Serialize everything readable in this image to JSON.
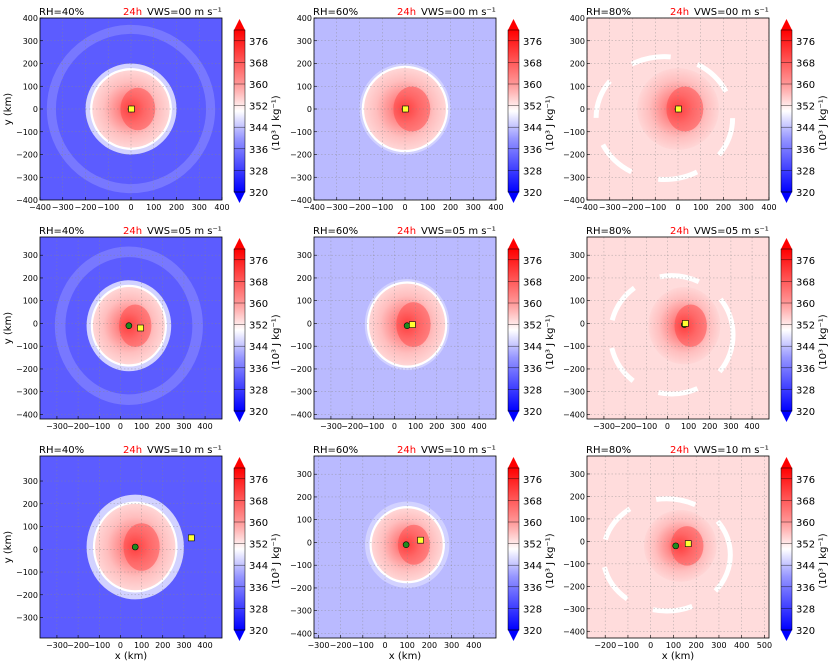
{
  "figure": {
    "time_label": "24h",
    "time_color": "#ff0000",
    "field_colors": {
      "strong_blue": "#5c5cff",
      "light_blue": "#babaff",
      "pale_red": "#ffdcdc",
      "white": "#ffffff",
      "red": "#ff3c3c"
    },
    "marker_colors": {
      "center_green": "#1e8c1e",
      "center_yellow": "#ffff33"
    }
  },
  "colorbar": {
    "label": "(10³ J kg⁻¹)",
    "ticks": [
      "376",
      "368",
      "360",
      "352",
      "344",
      "336",
      "328",
      "320"
    ],
    "vmin": 320,
    "vmax": 380
  },
  "chart_data": [
    {
      "type": "heatmap",
      "row": 1,
      "col": 1,
      "rh_label": "RH=40%",
      "vws_label": "VWS=00 m s⁻¹",
      "xlim": [
        -400,
        400
      ],
      "ylim": [
        -400,
        400
      ],
      "xticks": [
        "−400",
        "−300",
        "−200",
        "−100",
        "0",
        "100",
        "200",
        "300",
        "400"
      ],
      "yticks": [
        "400",
        "300",
        "200",
        "100",
        "0",
        "−100",
        "−200",
        "−300",
        "−400"
      ],
      "xlabel": "",
      "ylabel": "y (km)",
      "background": "strong_blue",
      "core": [
        0,
        0
      ],
      "core_radius_km": 170,
      "light_ring_radius_km": 200,
      "outer_ring": [
        330,
        370
      ],
      "green_center": [
        0,
        0
      ],
      "yellow_center": [
        2,
        0
      ]
    },
    {
      "type": "heatmap",
      "row": 1,
      "col": 2,
      "rh_label": "RH=60%",
      "vws_label": "VWS=00 m s⁻¹",
      "xlim": [
        -400,
        400
      ],
      "ylim": [
        -400,
        400
      ],
      "xticks": [
        "−400",
        "−300",
        "−200",
        "−100",
        "0",
        "100",
        "200",
        "300",
        "400"
      ],
      "yticks": [
        "400",
        "300",
        "200",
        "100",
        "0",
        "−100",
        "−200",
        "−300",
        "−400"
      ],
      "xlabel": "",
      "ylabel": "",
      "background": "light_blue",
      "core": [
        0,
        0
      ],
      "core_radius_km": 180,
      "light_ring_radius_km": 200,
      "outer_ring": null,
      "green_center": [
        0,
        0
      ],
      "yellow_center": [
        2,
        0
      ]
    },
    {
      "type": "heatmap",
      "row": 1,
      "col": 3,
      "rh_label": "RH=80%",
      "vws_label": "VWS=00 m s⁻¹",
      "xlim": [
        -400,
        400
      ],
      "ylim": [
        -400,
        400
      ],
      "xticks": [
        "−400",
        "−300",
        "−200",
        "−100",
        "0",
        "100",
        "200",
        "300",
        "400"
      ],
      "yticks": [
        "400",
        "300",
        "200",
        "100",
        "0",
        "−100",
        "−200",
        "−300",
        "−400"
      ],
      "xlabel": "",
      "ylabel": "",
      "background": "pale_red",
      "core": [
        0,
        0
      ],
      "core_radius_km": 180,
      "light_ring_radius_km": 0,
      "outer_ring": null,
      "green_center": [
        0,
        0
      ],
      "yellow_center": [
        2,
        0
      ]
    },
    {
      "type": "heatmap",
      "row": 2,
      "col": 1,
      "rh_label": "RH=40%",
      "vws_label": "VWS=05 m s⁻¹",
      "xlim": [
        -380,
        480
      ],
      "ylim": [
        -420,
        380
      ],
      "xticks": [
        "−300",
        "−200",
        "−100",
        "0",
        "100",
        "200",
        "300",
        "400"
      ],
      "yticks": [
        "300",
        "200",
        "100",
        "0",
        "−100",
        "−200",
        "−300",
        "−400"
      ],
      "xlabel": "",
      "ylabel": "y (km)",
      "background": "strong_blue",
      "core": [
        40,
        -10
      ],
      "core_radius_km": 170,
      "light_ring_radius_km": 200,
      "outer_ring": [
        300,
        350
      ],
      "green_center": [
        40,
        -10
      ],
      "yellow_center": [
        95,
        -20
      ]
    },
    {
      "type": "heatmap",
      "row": 2,
      "col": 2,
      "rh_label": "RH=60%",
      "vws_label": "VWS=05 m s⁻¹",
      "xlim": [
        -380,
        480
      ],
      "ylim": [
        -420,
        380
      ],
      "xticks": [
        "−300",
        "−200",
        "−100",
        "0",
        "100",
        "200",
        "300",
        "400"
      ],
      "yticks": [
        "300",
        "200",
        "100",
        "0",
        "−100",
        "−200",
        "−300",
        "−400"
      ],
      "xlabel": "",
      "ylabel": "",
      "background": "light_blue",
      "core": [
        60,
        -5
      ],
      "core_radius_km": 180,
      "light_ring_radius_km": 200,
      "outer_ring": null,
      "green_center": [
        60,
        -10
      ],
      "yellow_center": [
        85,
        -5
      ]
    },
    {
      "type": "heatmap",
      "row": 2,
      "col": 3,
      "rh_label": "RH=80%",
      "vws_label": "VWS=05 m s⁻¹",
      "xlim": [
        -380,
        480
      ],
      "ylim": [
        -420,
        380
      ],
      "xticks": [
        "−300",
        "−200",
        "−100",
        "0",
        "100",
        "200",
        "300",
        "400"
      ],
      "yticks": [
        "300",
        "200",
        "100",
        "0",
        "−100",
        "−200",
        "−300",
        "−400"
      ],
      "xlabel": "",
      "ylabel": "",
      "background": "pale_red",
      "core": [
        80,
        -10
      ],
      "core_radius_km": 170,
      "light_ring_radius_km": 0,
      "outer_ring": null,
      "green_center": [
        80,
        -5
      ],
      "yellow_center": [
        85,
        0
      ]
    },
    {
      "type": "heatmap",
      "row": 3,
      "col": 1,
      "rh_label": "RH=40%",
      "vws_label": "VWS=10 m s⁻¹",
      "xlim": [
        -380,
        480
      ],
      "ylim": [
        -390,
        410
      ],
      "xticks": [
        "−300",
        "−200",
        "−100",
        "0",
        "100",
        "200",
        "300",
        "400"
      ],
      "yticks": [
        "300",
        "200",
        "100",
        "0",
        "−100",
        "−200",
        "−300"
      ],
      "xlabel": "x (km)",
      "ylabel": "y (km)",
      "background": "strong_blue",
      "core": [
        70,
        10
      ],
      "core_radius_km": 190,
      "light_ring_radius_km": 230,
      "outer_ring": null,
      "green_center": [
        70,
        10
      ],
      "yellow_center": [
        335,
        50
      ]
    },
    {
      "type": "heatmap",
      "row": 3,
      "col": 2,
      "rh_label": "RH=60%",
      "vws_label": "VWS=10 m s⁻¹",
      "xlim": [
        -320,
        500
      ],
      "ylim": [
        -420,
        380
      ],
      "xticks": [
        "−300",
        "−200",
        "−100",
        "0",
        "100",
        "200",
        "300",
        "400"
      ],
      "yticks": [
        "300",
        "200",
        "100",
        "0",
        "−100",
        "−200",
        "−300",
        "−400"
      ],
      "xlabel": "x (km)",
      "ylabel": "",
      "background": "light_blue",
      "core": [
        100,
        -10
      ],
      "core_radius_km": 160,
      "light_ring_radius_km": 190,
      "outer_ring": null,
      "green_center": [
        95,
        -10
      ],
      "yellow_center": [
        160,
        10
      ]
    },
    {
      "type": "heatmap",
      "row": 3,
      "col": 3,
      "rh_label": "RH=80%",
      "vws_label": "VWS=10 m s⁻¹",
      "xlim": [
        -280,
        520
      ],
      "ylim": [
        -430,
        380
      ],
      "xticks": [
        "−200",
        "−100",
        "0",
        "100",
        "200",
        "300",
        "400",
        "500"
      ],
      "yticks": [
        "300",
        "200",
        "100",
        "0",
        "−100",
        "−200",
        "−300",
        "−400"
      ],
      "xlabel": "x (km)",
      "ylabel": "",
      "background": "pale_red",
      "core": [
        130,
        -20
      ],
      "core_radius_km": 160,
      "light_ring_radius_km": 0,
      "outer_ring": null,
      "green_center": [
        110,
        -20
      ],
      "yellow_center": [
        165,
        -10
      ]
    }
  ]
}
